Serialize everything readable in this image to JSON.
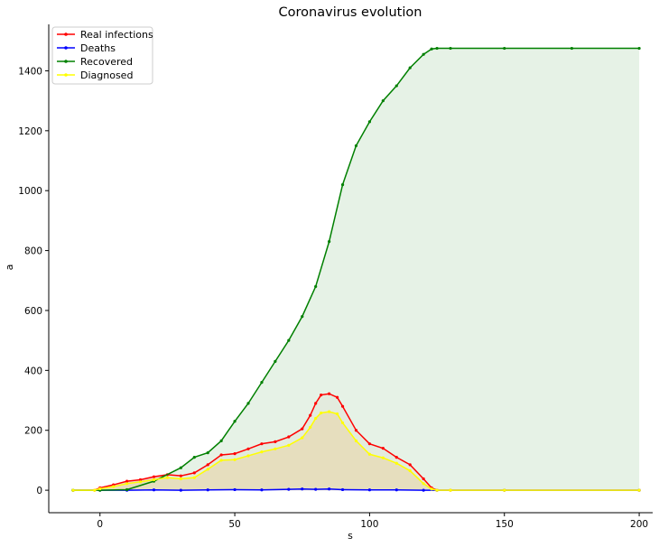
{
  "chart_data": {
    "type": "line",
    "title": "Coronavirus evolution",
    "xlabel": "s",
    "ylabel": "a",
    "xlim": [
      -19,
      205
    ],
    "ylim": [
      -75,
      1555
    ],
    "xticks": [
      0,
      50,
      100,
      150,
      200
    ],
    "yticks": [
      0,
      200,
      400,
      600,
      800,
      1000,
      1200,
      1400
    ],
    "legend_position": "top-left",
    "grid": false,
    "series": [
      {
        "name": "Real infections",
        "color": "#ff0000",
        "fill": "#e8c8bc",
        "x": [
          -10,
          -2,
          0,
          5,
          10,
          15,
          20,
          25,
          30,
          35,
          40,
          45,
          50,
          55,
          60,
          65,
          70,
          75,
          78,
          80,
          82,
          85,
          88,
          90,
          95,
          100,
          105,
          110,
          115,
          120,
          123,
          125,
          130,
          150,
          200
        ],
        "y": [
          0,
          0,
          8,
          18,
          30,
          35,
          45,
          52,
          48,
          58,
          85,
          118,
          122,
          138,
          155,
          162,
          178,
          205,
          250,
          290,
          318,
          322,
          310,
          280,
          200,
          155,
          140,
          110,
          85,
          38,
          8,
          0,
          0,
          0,
          0
        ]
      },
      {
        "name": "Deaths",
        "color": "#0000ff",
        "x": [
          -10,
          0,
          10,
          20,
          30,
          40,
          50,
          60,
          70,
          75,
          80,
          85,
          90,
          100,
          110,
          120,
          125,
          150,
          200
        ],
        "y": [
          0,
          0,
          0,
          1,
          0,
          1,
          2,
          1,
          3,
          4,
          3,
          4,
          2,
          1,
          1,
          0,
          0,
          0,
          0
        ]
      },
      {
        "name": "Recovered",
        "color": "#008000",
        "fill": "#e2f0e2",
        "x": [
          -10,
          0,
          10,
          20,
          30,
          35,
          40,
          45,
          50,
          55,
          60,
          65,
          70,
          75,
          80,
          85,
          90,
          95,
          100,
          105,
          110,
          115,
          120,
          123,
          125,
          130,
          150,
          175,
          200
        ],
        "y": [
          0,
          0,
          2,
          30,
          75,
          110,
          125,
          165,
          230,
          290,
          360,
          430,
          500,
          580,
          680,
          830,
          1020,
          1150,
          1230,
          1300,
          1350,
          1410,
          1455,
          1473,
          1475,
          1475,
          1475,
          1475,
          1475
        ]
      },
      {
        "name": "Diagnosed",
        "color": "#ffff00",
        "fill": "#e6dcb8",
        "x": [
          -10,
          -2,
          0,
          5,
          10,
          15,
          20,
          25,
          30,
          35,
          40,
          45,
          50,
          55,
          60,
          65,
          70,
          75,
          78,
          80,
          82,
          85,
          88,
          90,
          95,
          100,
          105,
          110,
          115,
          120,
          123,
          125,
          130,
          150,
          200
        ],
        "y": [
          0,
          0,
          5,
          12,
          22,
          28,
          35,
          42,
          38,
          42,
          70,
          100,
          102,
          115,
          128,
          138,
          150,
          175,
          210,
          240,
          258,
          262,
          255,
          225,
          165,
          120,
          108,
          90,
          65,
          22,
          4,
          0,
          0,
          0,
          0
        ]
      }
    ]
  }
}
